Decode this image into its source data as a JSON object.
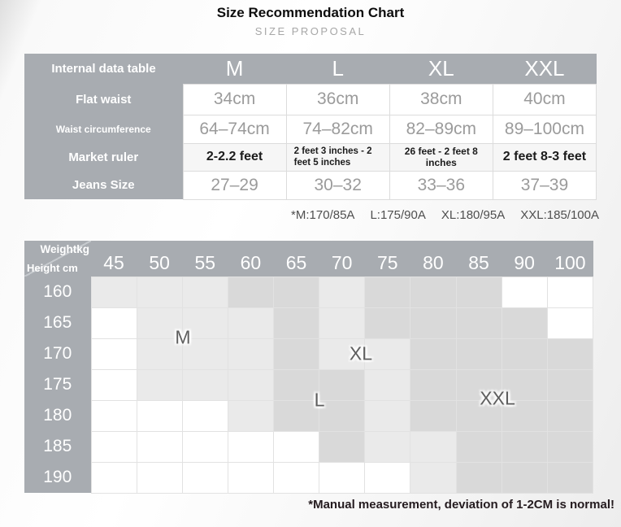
{
  "header": {
    "title": "Size Recommendation Chart",
    "subtitle": "SIZE PROPOSAL"
  },
  "size_table": {
    "corner_label": "Internal data table",
    "columns": [
      "M",
      "L",
      "XL",
      "XXL"
    ],
    "rows": [
      {
        "label": "Flat waist",
        "emphasis": false,
        "values": [
          "34cm",
          "36cm",
          "38cm",
          "40cm"
        ]
      },
      {
        "label": "Waist circumference",
        "emphasis": false,
        "values": [
          "64–74cm",
          "74–82cm",
          "82–89cm",
          "89–100cm"
        ]
      },
      {
        "label": "Market ruler",
        "emphasis": true,
        "values": [
          "2-2.2 feet",
          "2 feet 3 inches - 2 feet 5 inches",
          "26 feet - 2 feet 8 inches",
          "2 feet 8-3 feet"
        ]
      },
      {
        "label": "Jeans Size",
        "emphasis": false,
        "values": [
          "27–29",
          "30–32",
          "33–36",
          "37–39"
        ]
      }
    ],
    "footnote_items": [
      "*M:170/85A",
      "L:175/90A",
      "XL:180/95A",
      "XXL:185/100A"
    ]
  },
  "chart_data": {
    "type": "heatmap",
    "x_axis_label": "Weightkg",
    "y_axis_label": "Height cm",
    "x_ticks": [
      "45",
      "50",
      "55",
      "60",
      "65",
      "70",
      "75",
      "80",
      "85",
      "90",
      "100"
    ],
    "y_ticks": [
      "160",
      "165",
      "170",
      "175",
      "180",
      "185",
      "190"
    ],
    "shades": {
      "W": "#ffffff",
      "L": "#eaeaea",
      "D": "#d9d9d9"
    },
    "shade_meaning": {
      "W": "outside size zones",
      "L": "light overlap zone",
      "D": "dark size zone"
    },
    "cells": [
      [
        "L",
        "L",
        "L",
        "D",
        "D",
        "L",
        "D",
        "D",
        "D",
        "W",
        "W"
      ],
      [
        "W",
        "L",
        "L",
        "L",
        "D",
        "L",
        "D",
        "D",
        "D",
        "D",
        "W"
      ],
      [
        "W",
        "L",
        "L",
        "L",
        "D",
        "L",
        "L",
        "D",
        "D",
        "D",
        "D"
      ],
      [
        "W",
        "L",
        "L",
        "L",
        "D",
        "D",
        "L",
        "D",
        "D",
        "D",
        "D"
      ],
      [
        "W",
        "W",
        "W",
        "L",
        "D",
        "D",
        "L",
        "D",
        "D",
        "D",
        "D"
      ],
      [
        "W",
        "W",
        "W",
        "W",
        "W",
        "D",
        "L",
        "L",
        "D",
        "D",
        "D"
      ],
      [
        "W",
        "W",
        "W",
        "W",
        "W",
        "W",
        "W",
        "L",
        "D",
        "D",
        "D"
      ]
    ],
    "zone_labels": [
      {
        "text": "M",
        "left": 195,
        "top": 119
      },
      {
        "text": "XL",
        "left": 414,
        "top": 139
      },
      {
        "text": "L",
        "left": 363,
        "top": 196
      },
      {
        "text": "XXL",
        "left": 582,
        "top": 194
      }
    ]
  },
  "footer": {
    "note": "*Manual measurement, deviation of 1-2CM is normal!"
  },
  "colors": {
    "header_gray": "#a8acb1",
    "cell_light": "#eaeaea",
    "cell_mid": "#d9d9d9",
    "value_text": "#9b9b9b",
    "emphasis_text": "#1c1c1c",
    "note_dark": "#241b1f"
  }
}
